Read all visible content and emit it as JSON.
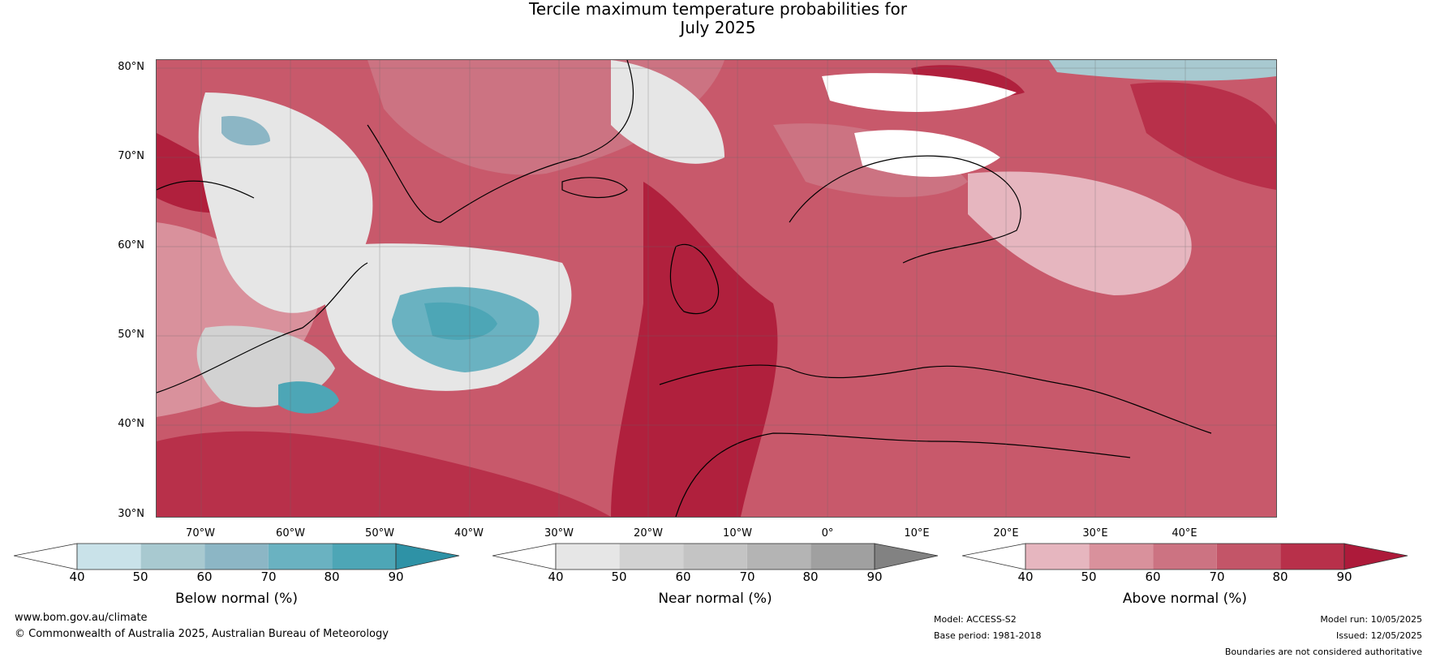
{
  "title": {
    "line1": "Tercile maximum temperature probabilities for",
    "line2": "July 2025"
  },
  "latitudes": [
    "80°N",
    "70°N",
    "60°N",
    "50°N",
    "40°N",
    "30°N"
  ],
  "longitudes": [
    "70°W",
    "60°W",
    "50°W",
    "40°W",
    "30°W",
    "20°W",
    "10°W",
    "0°",
    "10°E",
    "20°E",
    "30°E",
    "40°E"
  ],
  "colorbars": [
    {
      "title": "Below normal (%)",
      "ticks": [
        "40",
        "50",
        "60",
        "70",
        "80",
        "90"
      ],
      "colors": [
        "#ffffff",
        "#c9e2e9",
        "#a8c9d0",
        "#8cb6c5",
        "#6ab2c1",
        "#4da6b6",
        "#2e92a6"
      ]
    },
    {
      "title": "Near normal (%)",
      "ticks": [
        "40",
        "50",
        "60",
        "70",
        "80",
        "90"
      ],
      "colors": [
        "#ffffff",
        "#e6e6e6",
        "#d2d2d2",
        "#c4c4c4",
        "#b4b4b4",
        "#a0a0a0",
        "#828282"
      ]
    },
    {
      "title": "Above normal (%)",
      "ticks": [
        "40",
        "50",
        "60",
        "70",
        "80",
        "90"
      ],
      "colors": [
        "#ffffff",
        "#e6b6bf",
        "#d9919c",
        "#cc7382",
        "#c35568",
        "#b8304a",
        "#ad1a3a"
      ]
    }
  ],
  "footer": {
    "website": "www.bom.gov.au/climate",
    "copyright": "© Commonwealth of Australia 2025, Australian Bureau of Meteorology",
    "model": "Model: ACCESS-S2",
    "base_period": "Base period: 1981-2018",
    "model_run": "Model run: 10/05/2025",
    "issued": "Issued: 12/05/2025",
    "disclaimer": "Boundaries are not considered authoritative"
  }
}
